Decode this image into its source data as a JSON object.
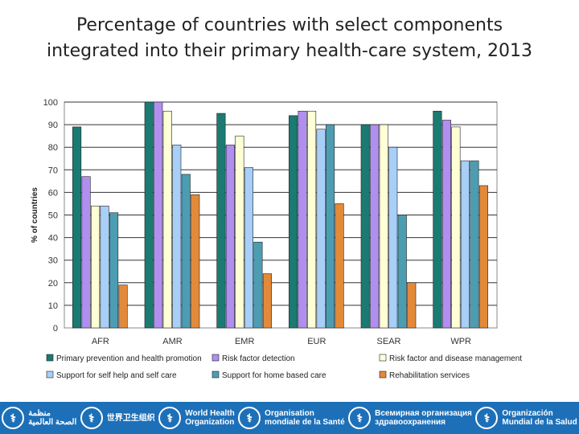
{
  "page": {
    "title_line1": "Percentage of countries with select components",
    "title_line2": "integrated into their primary health-care system, 2013"
  },
  "chart_data": {
    "type": "bar",
    "ylabel": "% of countries",
    "xlabel": "",
    "ylim": [
      0,
      100
    ],
    "yticks": [
      0,
      10,
      20,
      30,
      40,
      50,
      60,
      70,
      80,
      90,
      100
    ],
    "grid": true,
    "legend_position": "bottom",
    "categories": [
      "AFR",
      "AMR",
      "EMR",
      "EUR",
      "SEAR",
      "WPR"
    ],
    "series": [
      {
        "name": "Primary prevention and health promotion",
        "color": "#1b7a72",
        "values": [
          89,
          100,
          95,
          94,
          90,
          96
        ]
      },
      {
        "name": "Risk factor detection",
        "color": "#b08ff0",
        "values": [
          67,
          100,
          81,
          96,
          90,
          92
        ]
      },
      {
        "name": "Risk factor and disease management",
        "color": "#ffffd6",
        "values": [
          54,
          96,
          85,
          96,
          90,
          89
        ]
      },
      {
        "name": "Support for self help and self care",
        "color": "#a7cff7",
        "values": [
          54,
          81,
          71,
          88,
          80,
          74
        ]
      },
      {
        "name": "Support for home based care",
        "color": "#4d9db2",
        "values": [
          51,
          68,
          38,
          90,
          50,
          74
        ]
      },
      {
        "name": "Rehabilitation services",
        "color": "#e38a3a",
        "values": [
          19,
          59,
          24,
          55,
          20,
          63
        ]
      }
    ]
  },
  "footer": {
    "organizations": [
      {
        "icon": "who-emblem-icon",
        "name": "منظمة\nالصحة العالمية"
      },
      {
        "icon": "who-emblem-icon",
        "name": "世界卫生组织"
      },
      {
        "icon": "who-emblem-icon",
        "name": "World Health\nOrganization"
      },
      {
        "icon": "who-emblem-icon",
        "name": "Organisation\nmondiale de la Santé"
      },
      {
        "icon": "who-emblem-icon",
        "name": "Всемирная организация\nздравоохранения"
      },
      {
        "icon": "who-emblem-icon",
        "name": "Organización\nMundial de la Salud"
      }
    ]
  }
}
